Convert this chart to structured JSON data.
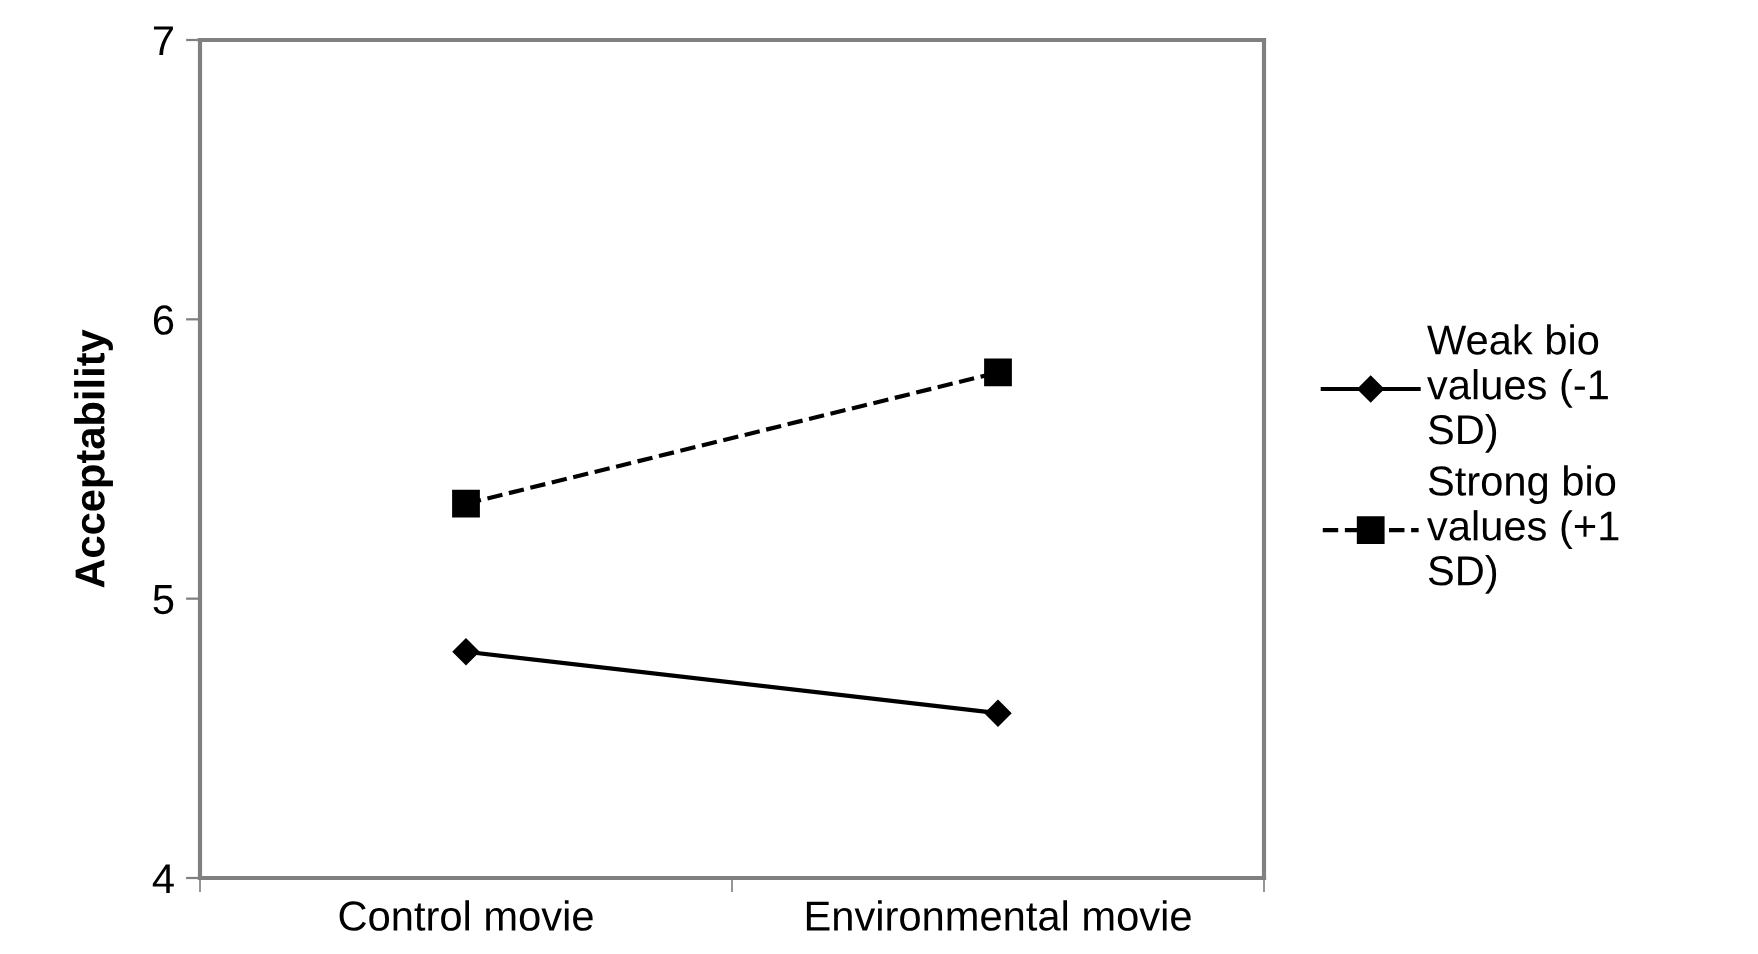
{
  "chart_data": {
    "type": "line",
    "ylabel": "Acceptability",
    "categories": [
      "Control movie",
      "Environmental movie"
    ],
    "series": [
      {
        "name": "Weak bio values (-1 SD)",
        "color": "#000000",
        "values": [
          4.81,
          4.59
        ],
        "marker": "diamond",
        "line_style": "solid"
      },
      {
        "name": "Strong bio values (+1 SD)",
        "color": "#000000",
        "values": [
          5.34,
          5.81
        ],
        "marker": "square",
        "line_style": "dashed"
      }
    ],
    "ylim": [
      4,
      7
    ],
    "yticks": [
      4,
      5,
      6,
      7
    ],
    "grid": false,
    "legend": "right"
  }
}
